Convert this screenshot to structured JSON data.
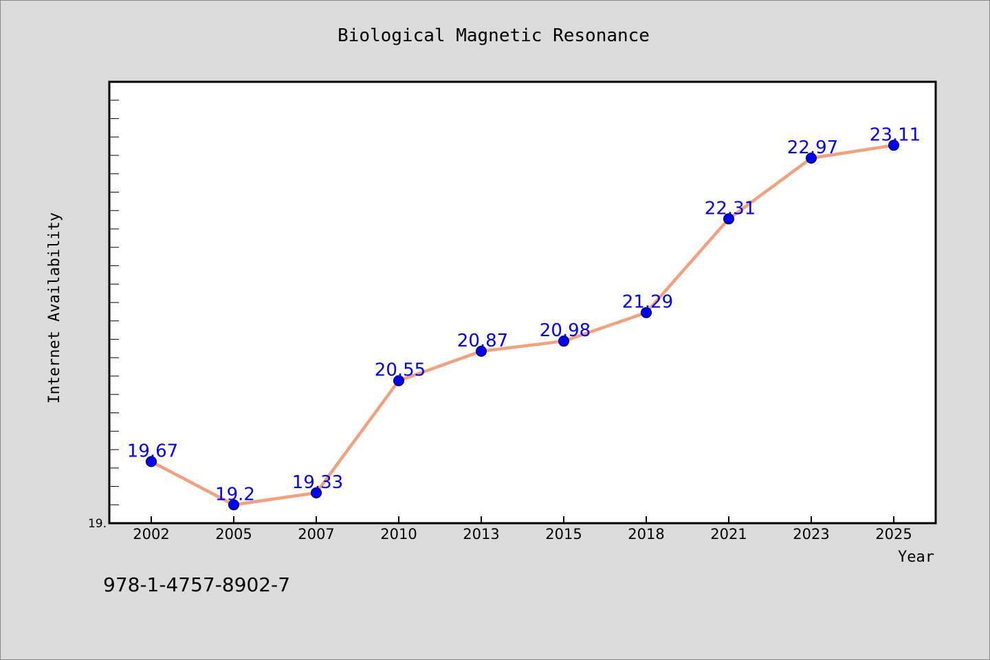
{
  "chart_data": {
    "type": "line",
    "title": "Biological Magnetic Resonance",
    "xlabel": "Year",
    "ylabel": "Internet Availability",
    "categories": [
      "2002",
      "2005",
      "2007",
      "2010",
      "2013",
      "2015",
      "2018",
      "2021",
      "2023",
      "2025"
    ],
    "series": [
      {
        "values": [
          19.67,
          19.2,
          19.33,
          20.55,
          20.87,
          20.98,
          21.29,
          22.31,
          22.97,
          23.11
        ]
      }
    ],
    "ylim": [
      19.0,
      23.8
    ],
    "y_tick_label": "19.",
    "data_labels": [
      "19.67",
      "19.2",
      "19.33",
      "20.55",
      "20.87",
      "20.98",
      "21.29",
      "22.31",
      "22.97",
      "23.11"
    ],
    "grid": false,
    "legend": "none",
    "colors": {
      "line": "#f5a07c",
      "marker": "#0000ff",
      "label": "#0000ff",
      "axes": "#000000",
      "plot_bg": "#ffffff",
      "page_bg": "#dcdcdc"
    }
  },
  "footer": {
    "isbn": "978-1-4757-8902-7"
  }
}
